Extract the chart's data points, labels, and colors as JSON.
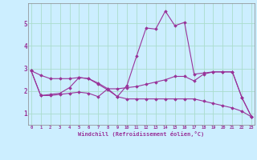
{
  "xlabel": "Windchill (Refroidissement éolien,°C)",
  "background_color": "#cceeff",
  "grid_color": "#aaddcc",
  "line_color": "#993399",
  "x_ticks": [
    0,
    1,
    2,
    3,
    4,
    5,
    6,
    7,
    8,
    9,
    10,
    11,
    12,
    13,
    14,
    15,
    16,
    17,
    18,
    19,
    20,
    21,
    22,
    23
  ],
  "ylim": [
    0.5,
    5.9
  ],
  "xlim": [
    -0.3,
    23.3
  ],
  "series": [
    {
      "x": [
        0,
        1,
        2,
        3,
        4,
        5,
        6,
        7,
        8,
        9,
        10,
        11,
        12,
        13,
        14,
        15,
        16,
        17,
        18,
        19,
        20,
        21,
        22,
        23
      ],
      "y": [
        2.9,
        1.8,
        1.85,
        1.9,
        2.15,
        2.6,
        2.55,
        2.3,
        2.05,
        1.75,
        2.25,
        3.55,
        4.8,
        4.75,
        5.55,
        4.9,
        5.05,
        2.75,
        2.8,
        2.85,
        2.85,
        2.85,
        1.7,
        0.85
      ]
    },
    {
      "x": [
        0,
        1,
        2,
        3,
        4,
        5,
        6,
        7,
        8,
        9,
        10,
        11,
        12,
        13,
        14,
        15,
        16,
        17,
        18,
        19,
        20,
        21,
        22,
        23
      ],
      "y": [
        2.9,
        1.8,
        1.8,
        1.85,
        1.9,
        1.95,
        1.9,
        1.75,
        2.1,
        2.1,
        2.15,
        2.2,
        2.3,
        2.4,
        2.5,
        2.65,
        2.65,
        2.45,
        2.75,
        2.85,
        2.85,
        2.85,
        1.7,
        0.85
      ]
    },
    {
      "x": [
        0,
        1,
        2,
        3,
        4,
        5,
        6,
        7,
        8,
        9,
        10,
        11,
        12,
        13,
        14,
        15,
        16,
        17,
        18,
        19,
        20,
        21,
        22,
        23
      ],
      "y": [
        2.9,
        2.7,
        2.55,
        2.55,
        2.55,
        2.6,
        2.55,
        2.35,
        2.1,
        1.75,
        1.65,
        1.65,
        1.65,
        1.65,
        1.65,
        1.65,
        1.65,
        1.65,
        1.55,
        1.45,
        1.35,
        1.25,
        1.1,
        0.85
      ]
    }
  ]
}
